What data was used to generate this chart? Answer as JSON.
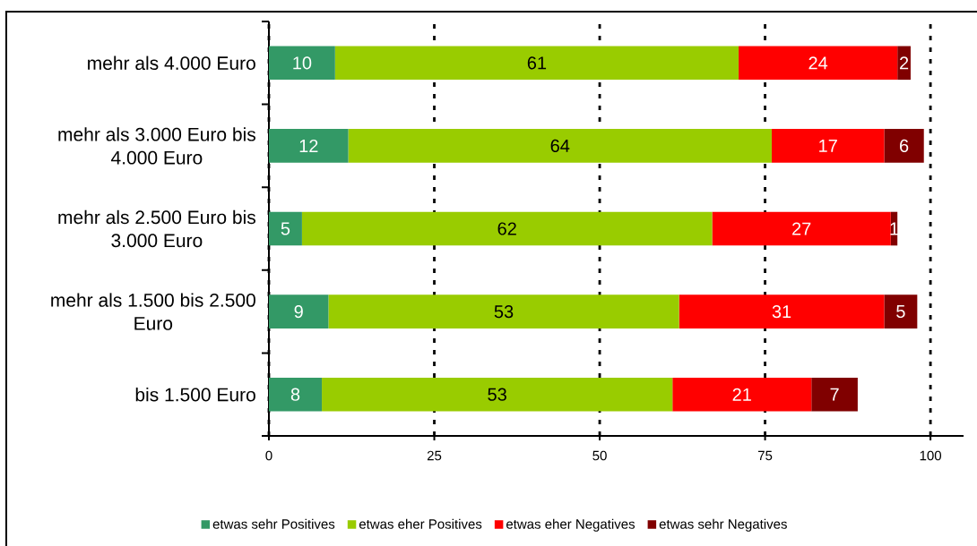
{
  "chart_data": {
    "type": "bar",
    "orientation": "horizontal",
    "stacked": true,
    "categories": [
      "mehr als 4.000 Euro",
      "mehr als 3.000 Euro bis 4.000 Euro",
      "mehr als 2.500 Euro bis 3.000 Euro",
      "mehr als 1.500 bis 2.500 Euro",
      "bis 1.500 Euro"
    ],
    "series": [
      {
        "name": "etwas sehr Positives",
        "color": "#339966",
        "values": [
          10,
          12,
          5,
          9,
          8
        ]
      },
      {
        "name": "etwas eher Positives",
        "color": "#99cc00",
        "values": [
          61,
          64,
          62,
          53,
          53
        ]
      },
      {
        "name": "etwas eher Negatives",
        "color": "#ff0000",
        "values": [
          24,
          17,
          27,
          31,
          21
        ]
      },
      {
        "name": "etwas sehr Negatives",
        "color": "#800000",
        "values": [
          2,
          6,
          1,
          5,
          7
        ]
      }
    ],
    "xlim": [
      0,
      105
    ],
    "xticks": [
      0,
      25,
      50,
      75,
      100
    ],
    "grid": "x",
    "legend": "bottom",
    "data_labels": true
  }
}
